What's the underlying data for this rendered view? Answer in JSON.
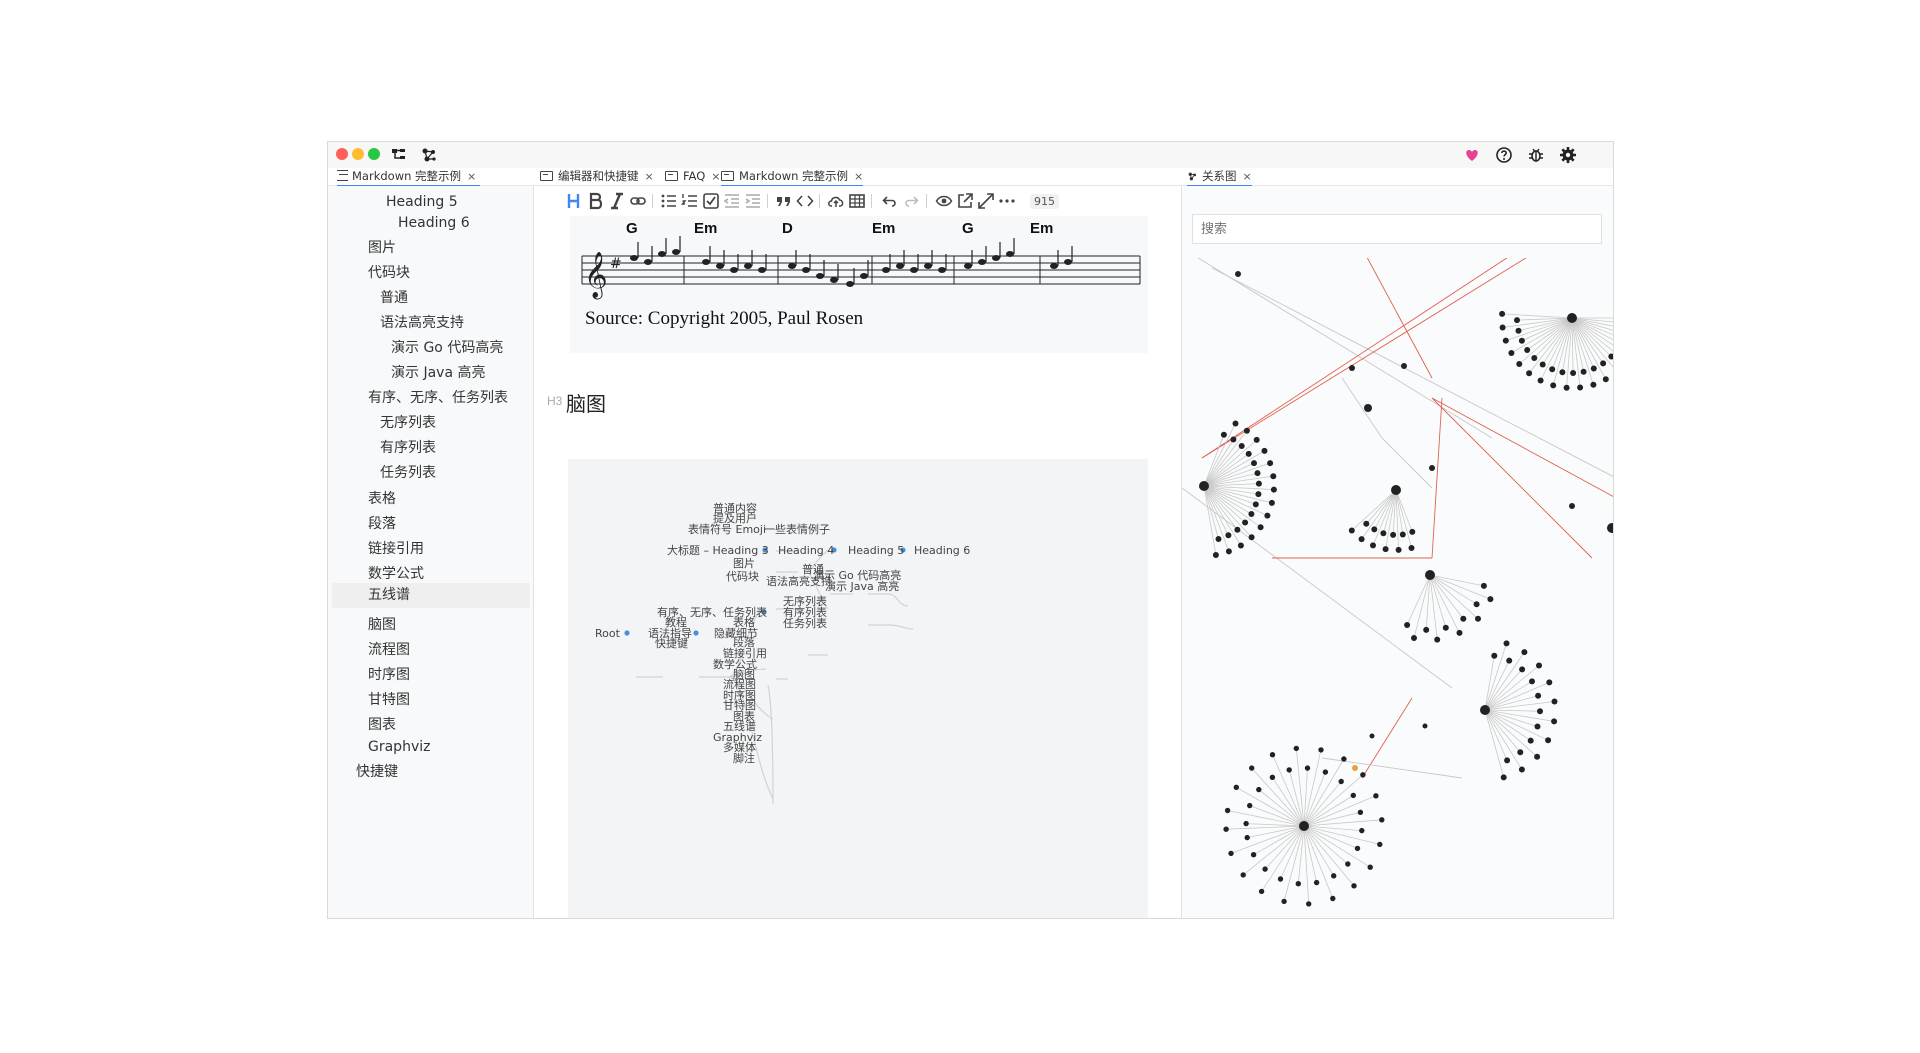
{
  "outline_tab": {
    "label": "Markdown 完整示例",
    "close": "×"
  },
  "editor_tabs": [
    {
      "label": "编辑器和快捷键",
      "close": "×"
    },
    {
      "label": "FAQ",
      "close": "×"
    },
    {
      "label": "Markdown 完整示例",
      "close": "×"
    }
  ],
  "graph_tab": {
    "label": "关系图",
    "close": "×"
  },
  "outline": [
    {
      "label": "Heading 5"
    },
    {
      "label": "Heading 6"
    },
    {
      "label": "图片"
    },
    {
      "label": "代码块"
    },
    {
      "label": "普通"
    },
    {
      "label": "语法高亮支持"
    },
    {
      "label": "演示 Go 代码高亮"
    },
    {
      "label": "演示 Java 高亮"
    },
    {
      "label": "有序、无序、任务列表"
    },
    {
      "label": "无序列表"
    },
    {
      "label": "有序列表"
    },
    {
      "label": "任务列表"
    },
    {
      "label": "表格"
    },
    {
      "label": "段落"
    },
    {
      "label": "链接引用"
    },
    {
      "label": "数学公式"
    },
    {
      "label": "五线谱",
      "current": true
    },
    {
      "label": "脑图"
    },
    {
      "label": "流程图"
    },
    {
      "label": "时序图"
    },
    {
      "label": "甘特图"
    },
    {
      "label": "图表"
    },
    {
      "label": "Graphviz"
    },
    {
      "label": "快捷键"
    }
  ],
  "toolbar": {
    "word_count": "915"
  },
  "score": {
    "chords": [
      "G",
      "Em",
      "D",
      "Em",
      "G",
      "Em"
    ],
    "source": "Source: Copyright 2005, Paul Rosen"
  },
  "section": {
    "marker": "H3",
    "title": "脑图"
  },
  "mindmap": {
    "nodes": [
      "普通内容",
      "提及用户",
      "表情符号 Emoji",
      "一些表情例子",
      "大标题 – Heading 3",
      "Heading 4",
      "Heading 5",
      "Heading 6",
      "图片",
      "代码块",
      "普通",
      "语法高亮支持",
      "演示 Go 代码高亮",
      "演示 Java 高亮",
      "有序、无序、任务列表",
      "无序列表",
      "有序列表",
      "任务列表",
      "教程",
      "表格",
      "Root",
      "语法指导",
      "隐藏细节",
      "快捷键",
      "段落",
      "链接引用",
      "数学公式",
      "脑图",
      "流程图",
      "时序图",
      "甘特图",
      "图表",
      "五线谱",
      "Graphviz",
      "多媒体",
      "脚注"
    ]
  },
  "graph": {
    "search_placeholder": "搜索"
  },
  "colors": {
    "accent": "#4285f4",
    "red_link": "#e0604e",
    "heart": "#e84393"
  }
}
